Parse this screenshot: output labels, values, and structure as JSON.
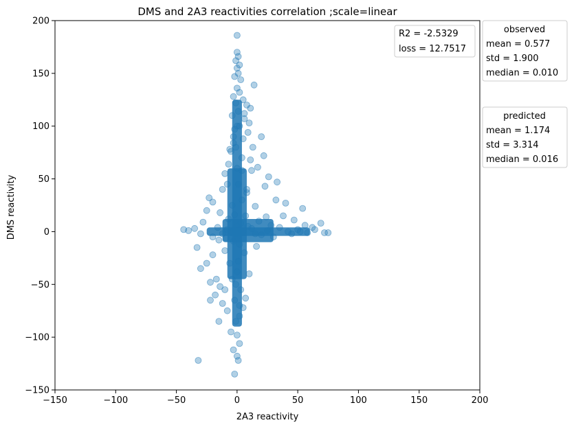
{
  "chart_data": {
    "type": "scatter",
    "title": "DMS and 2A3 reactivities correlation ;scale=linear",
    "xlabel": "2A3 reactivity",
    "ylabel": "DMS reactivity",
    "xlim": [
      -150,
      200
    ],
    "ylim": [
      -150,
      200
    ],
    "xticks": [
      -150,
      -100,
      -50,
      0,
      50,
      100,
      150,
      200
    ],
    "yticks": [
      -150,
      -100,
      -50,
      0,
      50,
      100,
      150,
      200
    ],
    "point_color": "#1f77b4",
    "point_alpha": 0.35,
    "grid": false,
    "metrics_box": {
      "lines": [
        "R2 = -2.5329",
        "loss = 12.7517"
      ],
      "placement": "upper-right inside axes"
    },
    "stat_boxes": [
      {
        "title": "observed",
        "lines": [
          "mean = 0.577",
          "std = 1.900",
          "median = 0.010"
        ]
      },
      {
        "title": "predicted",
        "lines": [
          "mean = 1.174",
          "std = 3.314",
          "median = 0.016"
        ]
      }
    ],
    "points": [
      [
        0,
        186
      ],
      [
        0,
        170
      ],
      [
        1,
        166
      ],
      [
        -1,
        162
      ],
      [
        2,
        158
      ],
      [
        0,
        155
      ],
      [
        1,
        150
      ],
      [
        -2,
        147
      ],
      [
        3,
        144
      ],
      [
        14,
        139
      ],
      [
        0,
        136
      ],
      [
        2,
        132
      ],
      [
        -3,
        128
      ],
      [
        5,
        125
      ],
      [
        -1,
        122
      ],
      [
        8,
        120
      ],
      [
        11,
        117
      ],
      [
        1,
        114
      ],
      [
        -4,
        110
      ],
      [
        6,
        107
      ],
      [
        10,
        103
      ],
      [
        2,
        100
      ],
      [
        -2,
        97
      ],
      [
        9,
        94
      ],
      [
        20,
        90
      ],
      [
        5,
        88
      ],
      [
        -3,
        84
      ],
      [
        13,
        80
      ],
      [
        -5,
        76
      ],
      [
        22,
        72
      ],
      [
        11,
        68
      ],
      [
        -7,
        64
      ],
      [
        17,
        61
      ],
      [
        4,
        58
      ],
      [
        -10,
        55
      ],
      [
        26,
        52
      ],
      [
        33,
        47
      ],
      [
        23,
        43
      ],
      [
        -12,
        40
      ],
      [
        8,
        37
      ],
      [
        -23,
        32
      ],
      [
        -20,
        28
      ],
      [
        32,
        30
      ],
      [
        40,
        27
      ],
      [
        15,
        24
      ],
      [
        -25,
        20
      ],
      [
        54,
        22
      ],
      [
        38,
        15
      ],
      [
        47,
        11
      ],
      [
        -28,
        9
      ],
      [
        56,
        6
      ],
      [
        62,
        4
      ],
      [
        69,
        8
      ],
      [
        64,
        2
      ],
      [
        -44,
        2
      ],
      [
        -40,
        1
      ],
      [
        -35,
        3
      ],
      [
        -30,
        -2
      ],
      [
        -33,
        -15
      ],
      [
        72,
        -1
      ],
      [
        75,
        -1
      ],
      [
        -20,
        -5
      ],
      [
        -15,
        -8
      ],
      [
        -30,
        -35
      ],
      [
        -25,
        -30
      ],
      [
        -22,
        -48
      ],
      [
        -17,
        -45
      ],
      [
        -14,
        -52
      ],
      [
        -18,
        -60
      ],
      [
        -22,
        -65
      ],
      [
        -10,
        -55
      ],
      [
        -12,
        -68
      ],
      [
        -15,
        -85
      ],
      [
        -8,
        -75
      ],
      [
        7,
        -63
      ],
      [
        2,
        -80
      ],
      [
        -5,
        -95
      ],
      [
        0,
        -98
      ],
      [
        2,
        -106
      ],
      [
        -3,
        -112
      ],
      [
        0,
        -118
      ],
      [
        1,
        -122
      ],
      [
        -32,
        -122
      ],
      [
        -2,
        -135
      ],
      [
        45,
        -2
      ],
      [
        50,
        2
      ],
      [
        30,
        -5
      ],
      [
        28,
        6
      ],
      [
        20,
        -3
      ],
      [
        18,
        10
      ],
      [
        35,
        4
      ],
      [
        25,
        1
      ],
      [
        42,
        0
      ],
      [
        52,
        0
      ],
      [
        58,
        -1
      ],
      [
        15,
        -2
      ],
      [
        12,
        3
      ],
      [
        -8,
        2
      ],
      [
        -12,
        -2
      ],
      [
        -16,
        4
      ],
      [
        6,
        -20
      ],
      [
        -6,
        -30
      ],
      [
        10,
        -40
      ],
      [
        -4,
        -45
      ],
      [
        3,
        -55
      ],
      [
        -2,
        -65
      ],
      [
        5,
        -72
      ],
      [
        -1,
        -85
      ],
      [
        8,
        40
      ],
      [
        -8,
        45
      ],
      [
        4,
        70
      ],
      [
        -3,
        90
      ],
      [
        6,
        112
      ],
      [
        -6,
        78
      ],
      [
        12,
        58
      ],
      [
        -14,
        18
      ],
      [
        24,
        14
      ],
      [
        -10,
        -18
      ],
      [
        16,
        -14
      ],
      [
        -20,
        -22
      ],
      [
        4,
        30
      ],
      [
        -4,
        25
      ],
      [
        7,
        15
      ],
      [
        -7,
        12
      ],
      [
        9,
        5
      ],
      [
        -9,
        -6
      ],
      [
        3,
        8
      ],
      [
        -3,
        -9
      ],
      [
        2,
        -12
      ],
      [
        -2,
        16
      ],
      [
        1,
        45
      ],
      [
        0,
        60
      ],
      [
        -1,
        80
      ],
      [
        0,
        100
      ],
      [
        1,
        -28
      ],
      [
        0,
        -38
      ],
      [
        -1,
        -50
      ],
      [
        2,
        -70
      ],
      [
        0,
        5
      ],
      [
        0,
        -5
      ],
      [
        1,
        2
      ],
      [
        -1,
        -2
      ],
      [
        5,
        0
      ],
      [
        -5,
        0
      ]
    ]
  }
}
